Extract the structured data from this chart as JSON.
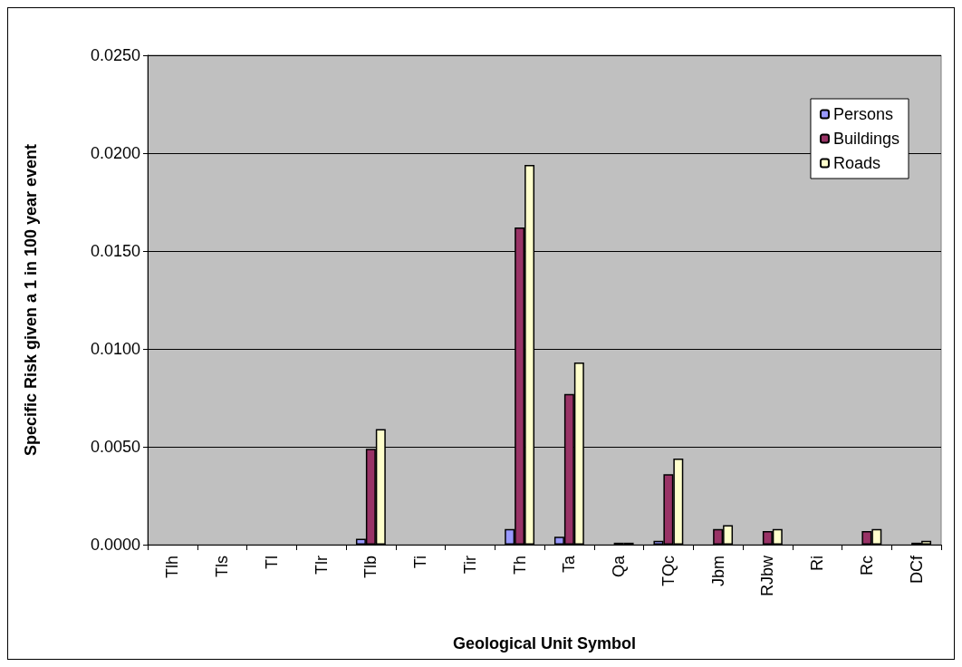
{
  "chart_data": {
    "type": "bar",
    "xlabel": "Geological Unit Symbol",
    "ylabel": "Specific Risk given a 1 in 100 year event",
    "categories": [
      "Tlh",
      "Tls",
      "Tl",
      "Tlr",
      "Tlb",
      "Ti",
      "Tir",
      "Th",
      "Ta",
      "Qa",
      "TQc",
      "Jbm",
      "RJbw",
      "Ri",
      "Rc",
      "DCf"
    ],
    "series": [
      {
        "name": "Persons",
        "color": "#9999ff",
        "values": [
          0,
          0,
          0,
          0,
          0.0003,
          0,
          0,
          0.0008,
          0.0004,
          0,
          0.0002,
          0,
          0,
          0,
          0,
          0
        ]
      },
      {
        "name": "Buildings",
        "color": "#993366",
        "values": [
          0,
          0,
          0,
          0,
          0.0049,
          0,
          0,
          0.0162,
          0.0077,
          0.0001,
          0.0036,
          0.0008,
          0.0007,
          0,
          0.0007,
          0.0001
        ]
      },
      {
        "name": "Roads",
        "color": "#ffffcc",
        "values": [
          0,
          0,
          0,
          0,
          0.0059,
          0,
          0,
          0.0194,
          0.0093,
          0.0001,
          0.0044,
          0.001,
          0.0008,
          0,
          0.0008,
          0.0002
        ]
      }
    ],
    "ylim": [
      0,
      0.025
    ],
    "yticks": [
      {
        "value": 0,
        "label": "0.0000"
      },
      {
        "value": 0.005,
        "label": "0.0050"
      },
      {
        "value": 0.01,
        "label": "0.0100"
      },
      {
        "value": 0.015,
        "label": "0.0150"
      },
      {
        "value": 0.02,
        "label": "0.0200"
      },
      {
        "value": 0.025,
        "label": "0.0250"
      }
    ],
    "grid": "y",
    "legend": "top right"
  }
}
